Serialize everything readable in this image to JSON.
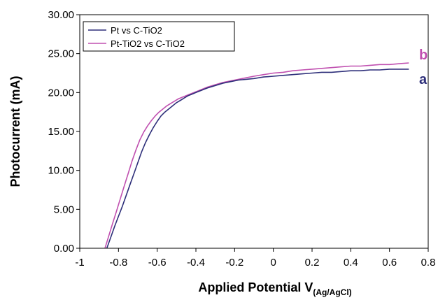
{
  "chart_data": {
    "type": "line",
    "title": "",
    "xlabel": "Applied Potential V",
    "xlabel_subscript": "(Ag/AgCl)",
    "ylabel": "Photocurrent (mA)",
    "xlim": [
      -1,
      0.8
    ],
    "ylim": [
      0,
      30
    ],
    "xticks": [
      "-1",
      "-0.8",
      "-0.6",
      "-0.4",
      "-0.2",
      "0",
      "0.2",
      "0.4",
      "0.6",
      "0.8"
    ],
    "yticks": [
      "0.00",
      "5.00",
      "10.00",
      "15.00",
      "20.00",
      "25.00",
      "30.00"
    ],
    "grid": false,
    "legend_position": "top-left",
    "series": [
      {
        "name": "Pt vs C-TiO2",
        "label": "a",
        "color": "#2e2f7a",
        "x": [
          -0.86,
          -0.84,
          -0.82,
          -0.8,
          -0.78,
          -0.76,
          -0.74,
          -0.72,
          -0.7,
          -0.68,
          -0.66,
          -0.64,
          -0.62,
          -0.6,
          -0.58,
          -0.56,
          -0.54,
          -0.52,
          -0.5,
          -0.48,
          -0.46,
          -0.44,
          -0.42,
          -0.4,
          -0.37,
          -0.34,
          -0.3,
          -0.26,
          -0.22,
          -0.18,
          -0.14,
          -0.1,
          -0.05,
          0.0,
          0.05,
          0.1,
          0.15,
          0.2,
          0.25,
          0.3,
          0.35,
          0.4,
          0.45,
          0.5,
          0.55,
          0.6,
          0.65,
          0.7
        ],
        "y": [
          0.0,
          1.4,
          2.8,
          4.1,
          5.4,
          6.8,
          8.2,
          9.6,
          11.0,
          12.4,
          13.6,
          14.6,
          15.5,
          16.3,
          17.0,
          17.5,
          17.9,
          18.3,
          18.7,
          19.0,
          19.3,
          19.6,
          19.8,
          20.0,
          20.3,
          20.6,
          20.9,
          21.2,
          21.4,
          21.6,
          21.7,
          21.8,
          22.0,
          22.1,
          22.2,
          22.3,
          22.4,
          22.5,
          22.6,
          22.6,
          22.7,
          22.8,
          22.8,
          22.9,
          22.9,
          23.0,
          23.0,
          23.0
        ]
      },
      {
        "name": "Pt-TiO2 vs C-TiO2",
        "label": "b",
        "color": "#c050b0",
        "x": [
          -0.87,
          -0.85,
          -0.83,
          -0.81,
          -0.79,
          -0.77,
          -0.75,
          -0.73,
          -0.71,
          -0.69,
          -0.67,
          -0.65,
          -0.63,
          -0.61,
          -0.59,
          -0.57,
          -0.55,
          -0.53,
          -0.51,
          -0.49,
          -0.47,
          -0.45,
          -0.42,
          -0.4,
          -0.37,
          -0.34,
          -0.3,
          -0.26,
          -0.22,
          -0.18,
          -0.14,
          -0.1,
          -0.05,
          0.0,
          0.05,
          0.1,
          0.15,
          0.2,
          0.25,
          0.3,
          0.35,
          0.4,
          0.45,
          0.5,
          0.55,
          0.6,
          0.65,
          0.7
        ],
        "y": [
          0.0,
          1.6,
          3.2,
          4.8,
          6.4,
          8.0,
          9.6,
          11.2,
          12.6,
          13.9,
          14.9,
          15.7,
          16.4,
          17.0,
          17.5,
          17.9,
          18.3,
          18.6,
          18.9,
          19.2,
          19.4,
          19.6,
          19.9,
          20.1,
          20.4,
          20.7,
          21.0,
          21.3,
          21.5,
          21.7,
          21.9,
          22.1,
          22.3,
          22.5,
          22.6,
          22.8,
          22.9,
          23.0,
          23.1,
          23.2,
          23.3,
          23.4,
          23.4,
          23.5,
          23.6,
          23.6,
          23.7,
          23.8
        ]
      }
    ]
  }
}
